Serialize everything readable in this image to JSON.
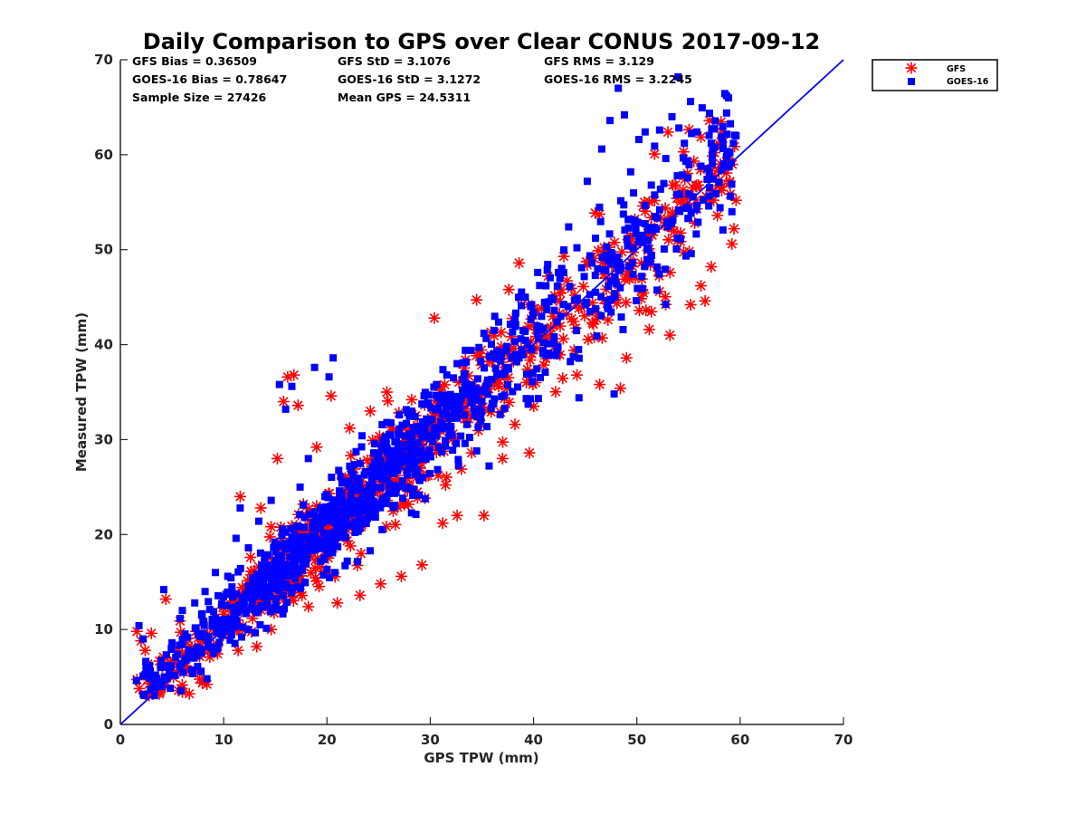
{
  "chart_data": {
    "type": "scatter",
    "title": "Daily Comparison to GPS over Clear CONUS 2017-09-12",
    "xlabel": "GPS TPW (mm)",
    "ylabel": "Measured TPW (mm)",
    "xlim": [
      0,
      70
    ],
    "ylim": [
      0,
      70
    ],
    "xticks": [
      "0",
      "10",
      "20",
      "30",
      "40",
      "50",
      "60",
      "70"
    ],
    "yticks": [
      "0",
      "10",
      "20",
      "30",
      "40",
      "50",
      "60",
      "70"
    ],
    "legend_position": "outside-top-right",
    "legend": [
      {
        "name": "GFS",
        "marker": "asterisk",
        "color": "#ff0000"
      },
      {
        "name": "GOES-16",
        "marker": "square",
        "color": "#0000ff"
      }
    ],
    "stats": [
      "GFS Bias = 0.36509",
      "GFS StD = 3.1076",
      "GFS RMS = 3.129",
      "GOES-16 Bias = 0.78647",
      "GOES-16 StD = 3.1272",
      "GOES-16 RMS = 3.2245",
      "Sample Size = 27426",
      "Mean GPS = 24.5311"
    ],
    "reference_line": {
      "name": "1:1 line",
      "x": [
        0,
        70
      ],
      "y": [
        0,
        70
      ],
      "color": "#0000ff"
    },
    "series": [
      {
        "name": "GFS",
        "color": "#ff0000",
        "marker": "asterisk",
        "points": [
          [
            1.6,
            9.8
          ],
          [
            2.0,
            8.8
          ],
          [
            2.4,
            7.8
          ],
          [
            3.0,
            9.6
          ],
          [
            4.2,
            4.2
          ],
          [
            4.4,
            13.2
          ],
          [
            5.2,
            6.6
          ],
          [
            6.4,
            5.8
          ],
          [
            7.6,
            7.8
          ],
          [
            8.6,
            9.2
          ],
          [
            9.4,
            8.4
          ],
          [
            10.2,
            9.6
          ],
          [
            11.4,
            7.8
          ],
          [
            11.6,
            24.0
          ],
          [
            12.6,
            17.6
          ],
          [
            13.2,
            8.2
          ],
          [
            13.6,
            22.8
          ],
          [
            14.6,
            10.0
          ],
          [
            15.2,
            28.0
          ],
          [
            15.8,
            34.0
          ],
          [
            16.2,
            36.6
          ],
          [
            16.8,
            36.8
          ],
          [
            17.2,
            33.6
          ],
          [
            18.2,
            12.4
          ],
          [
            19.0,
            29.2
          ],
          [
            20.4,
            34.6
          ],
          [
            21.0,
            12.8
          ],
          [
            22.2,
            31.2
          ],
          [
            23.2,
            13.6
          ],
          [
            24.2,
            33.0
          ],
          [
            25.2,
            14.8
          ],
          [
            25.8,
            35.0
          ],
          [
            27.2,
            15.6
          ],
          [
            28.2,
            34.2
          ],
          [
            29.2,
            16.8
          ],
          [
            29.8,
            26.2
          ],
          [
            30.4,
            42.8
          ],
          [
            31.2,
            21.2
          ],
          [
            32.6,
            22.0
          ],
          [
            33.4,
            38.4
          ],
          [
            34.0,
            28.6
          ],
          [
            35.2,
            22.0
          ],
          [
            36.2,
            36.0
          ],
          [
            37.0,
            28.0
          ],
          [
            37.6,
            45.8
          ],
          [
            38.2,
            31.6
          ],
          [
            38.6,
            48.6
          ],
          [
            39.6,
            28.6
          ],
          [
            40.2,
            36.0
          ],
          [
            41.4,
            47.2
          ],
          [
            42.2,
            39.2
          ],
          [
            43.2,
            43.2
          ],
          [
            44.2,
            36.8
          ],
          [
            45.2,
            48.4
          ],
          [
            46.4,
            35.8
          ],
          [
            47.2,
            42.6
          ],
          [
            48.4,
            35.4
          ],
          [
            49.0,
            38.6
          ],
          [
            49.6,
            48.6
          ],
          [
            50.6,
            54.6
          ],
          [
            51.2,
            41.6
          ],
          [
            52.2,
            45.6
          ],
          [
            53.2,
            41.0
          ],
          [
            54.2,
            55.0
          ],
          [
            55.2,
            44.2
          ],
          [
            55.6,
            52.8
          ],
          [
            56.2,
            46.2
          ],
          [
            56.6,
            44.6
          ],
          [
            57.2,
            48.2
          ],
          [
            57.8,
            53.6
          ],
          [
            58.2,
            56.6
          ],
          [
            59.2,
            50.6
          ],
          [
            59.4,
            52.2
          ],
          [
            59.6,
            55.2
          ],
          [
            59.0,
            57.2
          ],
          [
            22.0,
            25.6
          ],
          [
            25.0,
            29.6
          ],
          [
            28.0,
            31.0
          ],
          [
            31.0,
            33.0
          ],
          [
            34.0,
            35.0
          ],
          [
            19.0,
            23.0
          ],
          [
            16.0,
            18.8
          ],
          [
            13.0,
            15.2
          ],
          [
            10.0,
            11.6
          ],
          [
            40.0,
            42.0
          ],
          [
            44.0,
            45.2
          ],
          [
            47.0,
            47.0
          ],
          [
            50.0,
            50.6
          ],
          [
            53.0,
            53.2
          ]
        ]
      },
      {
        "name": "GOES-16",
        "color": "#0000ff",
        "marker": "square",
        "points": [
          [
            1.8,
            10.4
          ],
          [
            2.2,
            9.0
          ],
          [
            3.4,
            5.2
          ],
          [
            4.2,
            14.2
          ],
          [
            5.0,
            8.6
          ],
          [
            6.0,
            12.0
          ],
          [
            7.2,
            12.8
          ],
          [
            8.2,
            14.0
          ],
          [
            9.2,
            16.0
          ],
          [
            10.4,
            15.6
          ],
          [
            11.2,
            19.6
          ],
          [
            11.6,
            22.8
          ],
          [
            12.4,
            18.6
          ],
          [
            13.4,
            21.4
          ],
          [
            14.6,
            23.6
          ],
          [
            15.4,
            35.8
          ],
          [
            16.0,
            33.2
          ],
          [
            16.6,
            35.6
          ],
          [
            17.4,
            25.0
          ],
          [
            18.2,
            28.0
          ],
          [
            18.8,
            37.6
          ],
          [
            19.8,
            24.0
          ],
          [
            20.2,
            36.6
          ],
          [
            20.6,
            38.6
          ],
          [
            21.2,
            22.4
          ],
          [
            22.2,
            27.2
          ],
          [
            23.4,
            30.4
          ],
          [
            24.6,
            28.6
          ],
          [
            25.8,
            31.8
          ],
          [
            27.0,
            32.6
          ],
          [
            28.2,
            33.0
          ],
          [
            29.4,
            34.6
          ],
          [
            30.6,
            35.8
          ],
          [
            31.6,
            36.8
          ],
          [
            32.6,
            38.0
          ],
          [
            33.4,
            39.4
          ],
          [
            34.6,
            36.4
          ],
          [
            35.2,
            41.2
          ],
          [
            36.4,
            38.6
          ],
          [
            37.4,
            39.8
          ],
          [
            38.2,
            42.6
          ],
          [
            39.2,
            45.0
          ],
          [
            40.4,
            41.2
          ],
          [
            41.2,
            46.2
          ],
          [
            42.4,
            47.6
          ],
          [
            43.4,
            52.4
          ],
          [
            44.2,
            50.2
          ],
          [
            45.2,
            57.2
          ],
          [
            46.0,
            51.2
          ],
          [
            46.6,
            60.6
          ],
          [
            47.4,
            63.6
          ],
          [
            48.2,
            67.0
          ],
          [
            48.8,
            64.2
          ],
          [
            49.4,
            58.2
          ],
          [
            50.2,
            61.6
          ],
          [
            50.8,
            62.4
          ],
          [
            51.4,
            56.8
          ],
          [
            52.2,
            62.6
          ],
          [
            52.8,
            59.6
          ],
          [
            53.4,
            64.0
          ],
          [
            54.0,
            68.2
          ],
          [
            54.6,
            61.2
          ],
          [
            55.2,
            65.6
          ],
          [
            55.8,
            62.4
          ],
          [
            56.2,
            58.8
          ],
          [
            56.8,
            57.4
          ],
          [
            57.2,
            61.2
          ],
          [
            58.2,
            58.4
          ],
          [
            59.2,
            54.0
          ],
          [
            59.6,
            62.0
          ],
          [
            59.0,
            60.2
          ],
          [
            40.4,
            47.6
          ],
          [
            44.4,
            34.4
          ],
          [
            47.8,
            34.8
          ],
          [
            38.6,
            38.6
          ],
          [
            26.0,
            25.2
          ],
          [
            29.0,
            28.4
          ],
          [
            32.0,
            31.2
          ],
          [
            35.0,
            34.0
          ],
          [
            23.0,
            21.0
          ],
          [
            20.0,
            18.0
          ],
          [
            17.0,
            16.2
          ],
          [
            14.0,
            13.4
          ],
          [
            11.0,
            11.4
          ],
          [
            8.0,
            9.6
          ],
          [
            41.0,
            40.2
          ],
          [
            45.0,
            44.2
          ],
          [
            48.0,
            46.4
          ],
          [
            51.0,
            50.0
          ],
          [
            53.0,
            52.4
          ],
          [
            55.0,
            54.4
          ]
        ]
      }
    ]
  }
}
